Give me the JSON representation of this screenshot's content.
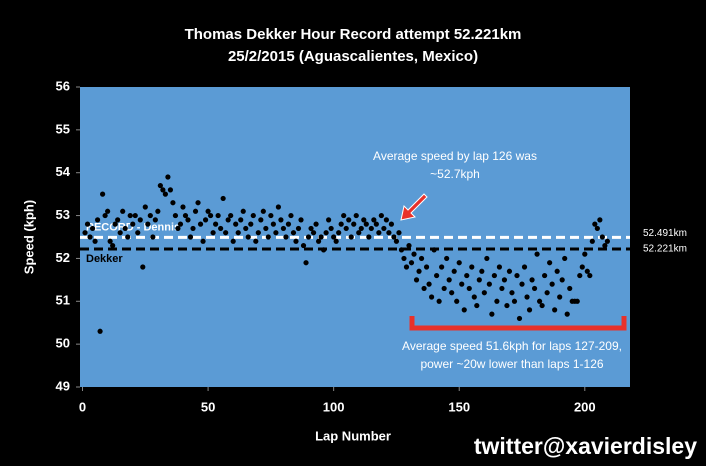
{
  "chart_data": {
    "type": "scatter",
    "title": "Thomas Dekker Hour Record attempt 52.221km",
    "subtitle": "25/2/2015 (Aguascalientes, Mexico)",
    "x_label": "Lap Number",
    "y_label": "Speed (kph)",
    "xlim": [
      -1,
      218
    ],
    "xticks": [
      0,
      50,
      100,
      150,
      200
    ],
    "ylim": [
      49,
      56
    ],
    "yticks": [
      49,
      50,
      51,
      52,
      53,
      54,
      55,
      56
    ],
    "color": "#000000",
    "background": "#5b9bd5",
    "reference_lines": [
      {
        "name": "RECORD - Dennis",
        "value": 52.491,
        "label": "52.491km",
        "color": "#ffffff"
      },
      {
        "name": "Dekker",
        "value": 52.221,
        "label": "52.221km",
        "color": "#000000"
      }
    ],
    "annotations": [
      {
        "lines": [
          "Average speed by lap 126 was",
          "~52.7kph"
        ]
      },
      {
        "lines": [
          "Average speed 51.6kph for laps 127-209,",
          "power ~20w lower than laps 1-126"
        ]
      }
    ],
    "watermark": "twitter@xavierdisley",
    "x": [
      1,
      2,
      3,
      4,
      5,
      6,
      7,
      8,
      9,
      10,
      11,
      12,
      13,
      14,
      15,
      16,
      17,
      18,
      19,
      20,
      21,
      22,
      23,
      24,
      25,
      26,
      27,
      28,
      29,
      30,
      31,
      32,
      33,
      34,
      35,
      36,
      37,
      38,
      39,
      40,
      41,
      42,
      43,
      44,
      45,
      46,
      47,
      48,
      49,
      50,
      51,
      52,
      53,
      54,
      55,
      56,
      57,
      58,
      59,
      60,
      61,
      62,
      63,
      64,
      65,
      66,
      67,
      68,
      69,
      70,
      71,
      72,
      73,
      74,
      75,
      76,
      77,
      78,
      79,
      80,
      81,
      82,
      83,
      84,
      85,
      86,
      87,
      88,
      89,
      90,
      91,
      92,
      93,
      94,
      95,
      96,
      97,
      98,
      99,
      100,
      101,
      102,
      103,
      104,
      105,
      106,
      107,
      108,
      109,
      110,
      111,
      112,
      113,
      114,
      115,
      116,
      117,
      118,
      119,
      120,
      121,
      122,
      123,
      124,
      125,
      126,
      127,
      128,
      129,
      130,
      131,
      132,
      133,
      134,
      135,
      136,
      137,
      138,
      139,
      140,
      141,
      142,
      143,
      144,
      145,
      146,
      147,
      148,
      149,
      150,
      151,
      152,
      153,
      154,
      155,
      156,
      157,
      158,
      159,
      160,
      161,
      162,
      163,
      164,
      165,
      166,
      167,
      168,
      169,
      170,
      171,
      172,
      173,
      174,
      175,
      176,
      177,
      178,
      179,
      180,
      181,
      182,
      183,
      184,
      185,
      186,
      187,
      188,
      189,
      190,
      191,
      192,
      193,
      194,
      195,
      196,
      197,
      198,
      199,
      200,
      201,
      202,
      203,
      204,
      205,
      206,
      207,
      208,
      209
    ],
    "values": [
      52.6,
      52.8,
      52.5,
      52.7,
      52.4,
      52.9,
      50.3,
      53.5,
      53.0,
      53.1,
      52.4,
      52.3,
      52.8,
      52.9,
      52.6,
      53.1,
      52.7,
      52.5,
      53.0,
      52.8,
      53.0,
      52.6,
      52.9,
      51.8,
      53.2,
      52.8,
      53.0,
      52.5,
      52.9,
      53.1,
      53.7,
      53.6,
      53.5,
      53.9,
      53.6,
      53.3,
      53.0,
      52.7,
      52.8,
      53.2,
      53.0,
      52.9,
      52.5,
      52.7,
      53.1,
      53.3,
      52.8,
      52.4,
      52.9,
      53.1,
      53.0,
      52.6,
      52.8,
      53.0,
      52.7,
      53.4,
      52.6,
      52.9,
      53.0,
      52.4,
      52.8,
      52.6,
      52.9,
      53.1,
      52.7,
      52.5,
      52.8,
      53.0,
      52.4,
      52.6,
      52.9,
      53.1,
      52.7,
      52.5,
      53.0,
      52.8,
      52.6,
      53.2,
      52.9,
      52.7,
      52.5,
      52.8,
      53.0,
      52.6,
      52.4,
      52.7,
      52.9,
      52.3,
      51.9,
      52.5,
      52.7,
      52.6,
      52.8,
      52.4,
      52.5,
      52.2,
      52.6,
      52.9,
      52.7,
      52.5,
      52.4,
      52.6,
      52.8,
      53.0,
      52.7,
      52.9,
      52.5,
      52.8,
      53.0,
      52.6,
      52.7,
      52.9,
      52.8,
      52.5,
      52.7,
      52.9,
      52.8,
      52.6,
      53.0,
      52.7,
      52.9,
      52.6,
      52.8,
      52.5,
      52.4,
      52.6,
      52.2,
      52.0,
      51.8,
      52.3,
      51.9,
      52.1,
      51.5,
      51.7,
      52.0,
      51.3,
      51.8,
      51.4,
      51.1,
      52.2,
      51.6,
      51.0,
      51.8,
      51.3,
      52.0,
      51.5,
      51.2,
      51.7,
      51.0,
      51.9,
      51.4,
      50.8,
      51.6,
      51.3,
      51.8,
      51.1,
      50.9,
      51.5,
      51.7,
      51.2,
      52.0,
      51.4,
      50.7,
      51.6,
      51.0,
      51.8,
      51.3,
      51.5,
      50.9,
      51.7,
      51.2,
      51.0,
      51.6,
      50.6,
      51.4,
      51.8,
      51.1,
      50.8,
      51.5,
      51.3,
      52.1,
      51.0,
      50.9,
      51.6,
      51.2,
      51.9,
      51.4,
      50.8,
      51.7,
      51.1,
      51.5,
      52.0,
      50.7,
      51.3,
      51.0,
      51.0,
      51.0,
      51.6,
      51.8,
      52.1,
      51.7,
      51.6,
      52.4,
      52.8,
      52.7,
      52.9,
      52.5,
      52.3,
      52.4
    ]
  }
}
